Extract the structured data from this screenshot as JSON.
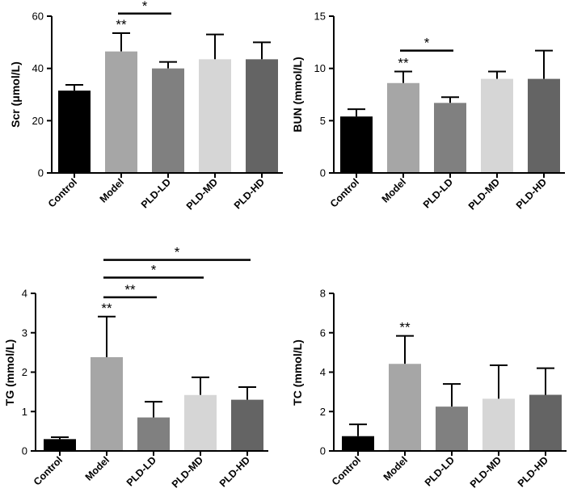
{
  "chart_data": [
    {
      "type": "bar",
      "panel": "scr",
      "categories": [
        "Control",
        "Model",
        "PLD-LD",
        "PLD-MD",
        "PLD-HD"
      ],
      "values": [
        31.5,
        46.5,
        40,
        43.5,
        43.5
      ],
      "errors": [
        2.2,
        7,
        2.5,
        9.5,
        6.5
      ],
      "ylabel": "Scr (μmol/L)",
      "ylim": [
        0,
        60
      ],
      "yticks": [
        "0",
        "20",
        "40",
        "60"
      ],
      "ytick_values": [
        0,
        20,
        40,
        60
      ],
      "sig_stars": [
        {
          "category": "Model",
          "label": "**"
        }
      ],
      "sig_brackets": [
        {
          "from": "Model",
          "to": "PLD-LD",
          "label": "*",
          "y": 61
        }
      ]
    },
    {
      "type": "bar",
      "panel": "bun",
      "categories": [
        "Control",
        "Model",
        "PLD-LD",
        "PLD-MD",
        "PLD-HD"
      ],
      "values": [
        5.4,
        8.6,
        6.7,
        9.0,
        9.0
      ],
      "errors": [
        0.7,
        1.1,
        0.55,
        0.7,
        2.7
      ],
      "ylabel": "BUN (mmol/L)",
      "ylim": [
        0,
        15
      ],
      "yticks": [
        "0",
        "5",
        "10",
        "15"
      ],
      "ytick_values": [
        0,
        5,
        10,
        15
      ],
      "sig_stars": [
        {
          "category": "Model",
          "label": "**"
        }
      ],
      "sig_brackets": [
        {
          "from": "Model",
          "to": "PLD-LD",
          "label": "*",
          "y": 11.7
        }
      ]
    },
    {
      "type": "bar",
      "panel": "tg",
      "categories": [
        "Control",
        "Model",
        "PLD-LD",
        "PLD-MD",
        "PLD-HD"
      ],
      "values": [
        0.3,
        2.38,
        0.85,
        1.42,
        1.3
      ],
      "errors": [
        0.05,
        1.03,
        0.4,
        0.45,
        0.32
      ],
      "ylabel": "TG (mmol/L)",
      "ylim": [
        0,
        4
      ],
      "yticks": [
        "0",
        "1",
        "2",
        "3",
        "4"
      ],
      "ytick_values": [
        0,
        1,
        2,
        3,
        4
      ],
      "sig_stars": [
        {
          "category": "Model",
          "label": "**"
        }
      ],
      "sig_brackets": [
        {
          "from": "Model",
          "to": "PLD-LD",
          "label": "**",
          "y": 3.9
        },
        {
          "from": "Model",
          "to": "PLD-MD",
          "label": "*",
          "y": 4.4
        },
        {
          "from": "Model",
          "to": "PLD-HD",
          "label": "*",
          "y": 4.85
        }
      ]
    },
    {
      "type": "bar",
      "panel": "tc",
      "categories": [
        "Control",
        "Model",
        "PLD-LD",
        "PLD-MD",
        "PLD-HD"
      ],
      "values": [
        0.75,
        4.42,
        2.25,
        2.65,
        2.85
      ],
      "errors": [
        0.6,
        1.42,
        1.15,
        1.7,
        1.35
      ],
      "ylabel": "TC (mmol/L)",
      "ylim": [
        0,
        8
      ],
      "yticks": [
        "0",
        "2",
        "4",
        "6",
        "8"
      ],
      "ytick_values": [
        0,
        2,
        4,
        6,
        8
      ],
      "sig_stars": [
        {
          "category": "Model",
          "label": "**"
        }
      ],
      "sig_brackets": []
    }
  ],
  "colors": {
    "bars": [
      "#000000",
      "#a6a6a6",
      "#808080",
      "#d6d6d6",
      "#646464"
    ],
    "axis": "#000000"
  }
}
